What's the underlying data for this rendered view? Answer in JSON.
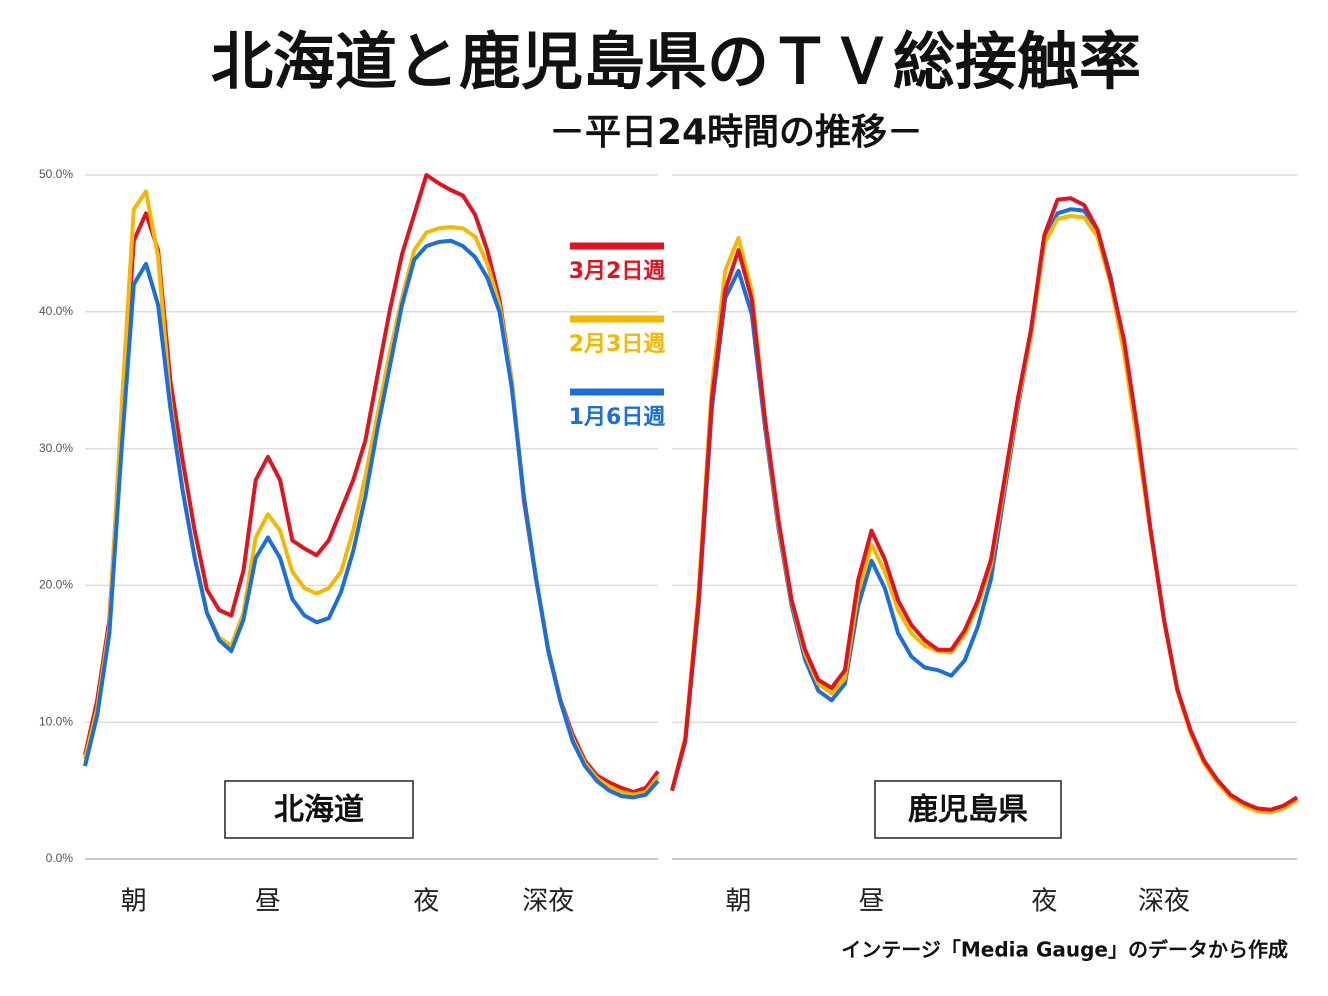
{
  "title": "北海道と鹿児島県のＴＶ総接触率",
  "subtitle": "－平日24時間の推移－",
  "source": "インテージ「Media Gauge」のデータから作成",
  "chart_data": [
    {
      "type": "line",
      "label": "北海道",
      "categories": [
        null,
        null,
        null,
        null,
        "朝",
        null,
        null,
        null,
        null,
        null,
        null,
        null,
        null,
        null,
        null,
        "昼",
        null,
        null,
        null,
        null,
        null,
        null,
        null,
        null,
        null,
        null,
        null,
        null,
        "夜",
        null,
        null,
        null,
        null,
        null,
        null,
        null,
        null,
        null,
        "深夜",
        null,
        null,
        null,
        null,
        null,
        null,
        null,
        null,
        null
      ],
      "ylim": [
        0,
        50
      ],
      "yticks": [
        {
          "value": 0,
          "label": "0.0%"
        },
        {
          "value": 10,
          "label": "10.0%"
        },
        {
          "value": 20,
          "label": "20.0%"
        },
        {
          "value": 30,
          "label": "30.0%"
        },
        {
          "value": 40,
          "label": "40.0%"
        },
        {
          "value": 50,
          "label": "50.0%"
        }
      ],
      "series": [
        {
          "name": "3月2日週",
          "color": "#e0141e",
          "values": [
            7.6,
            11.6,
            17.5,
            32,
            45.2,
            47.2,
            44.5,
            35,
            29.2,
            24,
            19.7,
            18.2,
            17.8,
            21.1,
            27.7,
            29.4,
            27.7,
            23.3,
            22.7,
            22.2,
            23.3,
            25.5,
            27.7,
            30.6,
            35.4,
            40.1,
            44.2,
            47.1,
            50,
            49.4,
            48.9,
            48.5,
            47.1,
            44.5,
            40.9,
            35,
            26.2,
            20.4,
            15.3,
            11.6,
            9.1,
            7.2,
            6.1,
            5.6,
            5.2,
            4.9,
            5.2,
            6.4
          ]
        },
        {
          "name": "2月3日週",
          "color": "#f5b800",
          "values": [
            7.3,
            11,
            17,
            33,
            47.5,
            48.8,
            44,
            33.5,
            27,
            22,
            18,
            16.2,
            15.6,
            18,
            23.5,
            25.2,
            24,
            21,
            19.8,
            19.4,
            19.8,
            21,
            24,
            28,
            32.5,
            37,
            41,
            44.5,
            45.8,
            46.1,
            46.2,
            46.1,
            45.5,
            43.5,
            40.5,
            35,
            26.5,
            20.5,
            15.2,
            11.5,
            8.8,
            7,
            5.9,
            5.3,
            4.9,
            4.7,
            4.9,
            6.0
          ]
        },
        {
          "name": "1月6日週",
          "color": "#1a6fdc",
          "values": [
            6.8,
            10.5,
            16.5,
            30,
            42,
            43.5,
            40.5,
            33,
            27,
            22,
            18,
            16,
            15.2,
            17.5,
            22,
            23.5,
            22,
            19,
            17.8,
            17.3,
            17.6,
            19.5,
            22.5,
            26.5,
            31.5,
            36,
            40.5,
            43.8,
            44.8,
            45.1,
            45.2,
            44.8,
            44,
            42.5,
            40,
            34.5,
            26.5,
            20.5,
            15.2,
            11.5,
            8.6,
            6.8,
            5.7,
            5.0,
            4.6,
            4.5,
            4.7,
            5.7
          ]
        }
      ]
    },
    {
      "type": "line",
      "label": "鹿児島県",
      "categories": [
        null,
        null,
        null,
        null,
        null,
        "朝",
        null,
        null,
        null,
        null,
        null,
        null,
        null,
        null,
        null,
        "昼",
        null,
        null,
        null,
        null,
        null,
        null,
        null,
        null,
        null,
        null,
        null,
        null,
        "夜",
        null,
        null,
        null,
        null,
        null,
        null,
        null,
        null,
        "深夜",
        null,
        null,
        null,
        null,
        null,
        null,
        null,
        null,
        null,
        null
      ],
      "ylim": [
        0,
        50
      ],
      "yticks": [
        0,
        10,
        20,
        30,
        40,
        50
      ],
      "series": [
        {
          "color": "#1a6fdc",
          "values": [
            5.0,
            8.6,
            18.5,
            33,
            41,
            43,
            39.8,
            31.5,
            24.2,
            18.5,
            14.6,
            12.3,
            11.6,
            12.8,
            18.5,
            21.8,
            19.8,
            16.5,
            14.8,
            14,
            13.8,
            13.4,
            14.5,
            17,
            20.5,
            26.8,
            33,
            38.3,
            45.2,
            47.2,
            47.5,
            47.4,
            46,
            42.5,
            37.5,
            31,
            24,
            17.5,
            12.4,
            9.3,
            7.1,
            5.7,
            4.6,
            4.0,
            3.6,
            3.5,
            3.8,
            4.4
          ]
        },
        {
          "color": "#f5b800",
          "values": [
            5.0,
            8.9,
            19.5,
            34.5,
            43,
            45.4,
            41.5,
            32,
            24.5,
            18.8,
            15,
            12.8,
            12.1,
            13.2,
            19.5,
            23,
            21,
            18.2,
            16.5,
            15.6,
            15.2,
            15.1,
            16.4,
            18.6,
            21.5,
            27.3,
            33.3,
            38.3,
            45,
            46.8,
            47,
            46.9,
            45.5,
            42,
            37,
            30.5,
            23.8,
            17.4,
            12.3,
            9.2,
            7.0,
            5.6,
            4.5,
            3.9,
            3.5,
            3.4,
            3.7,
            4.3
          ]
        },
        {
          "color": "#e0141e",
          "values": [
            5.0,
            8.7,
            18.9,
            33.6,
            41.6,
            44.5,
            40.9,
            32.1,
            24.8,
            18.9,
            15.3,
            13.1,
            12.5,
            13.8,
            20.4,
            24,
            21.9,
            18.9,
            17.1,
            16,
            15.3,
            15.3,
            16.7,
            18.9,
            21.9,
            27.7,
            33.6,
            38.7,
            45.6,
            48.2,
            48.3,
            47.8,
            46,
            42.3,
            37.9,
            31.4,
            24,
            17.5,
            12.4,
            9.4,
            7.2,
            5.8,
            4.7,
            4.1,
            3.7,
            3.6,
            3.9,
            4.5
          ]
        }
      ]
    }
  ]
}
